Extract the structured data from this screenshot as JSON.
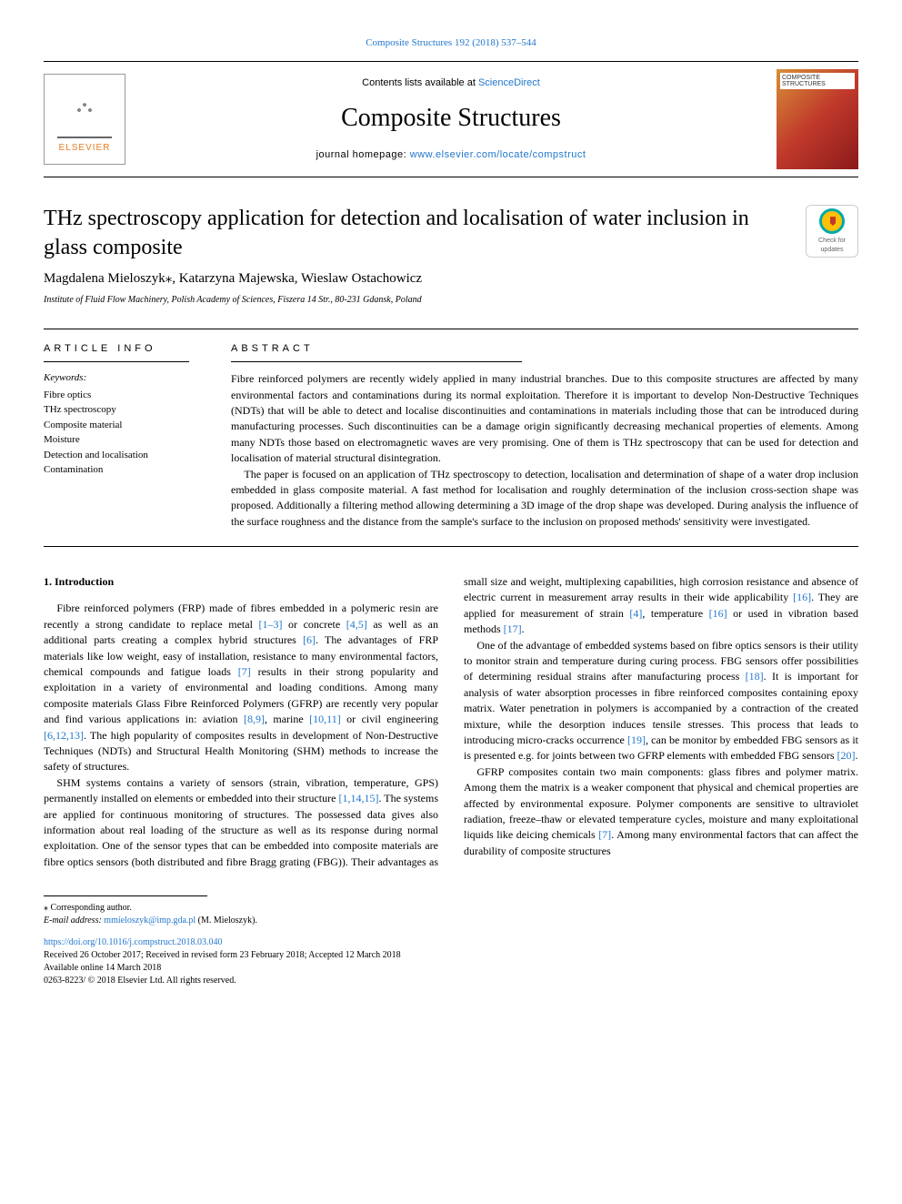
{
  "colors": {
    "link": "#2277cc",
    "text": "#000000",
    "background": "#ffffff",
    "publisher_accent": "#e67e22",
    "cover_gradient": [
      "#d89038",
      "#c0392b",
      "#8b1a1a"
    ],
    "badge_ring": "#00aaaa",
    "badge_fill": "#ffc107",
    "badge_mark": "#c0392b"
  },
  "fonts": {
    "body_family": "Georgia, 'Times New Roman', serif",
    "sans_family": "Arial, sans-serif",
    "title_pt": 24,
    "journal_pt": 28,
    "authors_pt": 15,
    "body_pt": 12,
    "small_pt": 10
  },
  "header": {
    "citation": "Composite Structures 192 (2018) 537–544",
    "contents_prefix": "Contents lists available at ",
    "contents_link": "ScienceDirect",
    "journal": "Composite Structures",
    "homepage_prefix": "journal homepage: ",
    "homepage_url": "www.elsevier.com/locate/compstruct",
    "publisher": "ELSEVIER",
    "cover_label": "COMPOSITE STRUCTURES"
  },
  "badge": {
    "line1": "Check for",
    "line2": "updates"
  },
  "article": {
    "title": "THz spectroscopy application for detection and localisation of water inclusion in glass composite",
    "authors": "Magdalena Mieloszyk⁎, Katarzyna Majewska, Wieslaw Ostachowicz",
    "affiliation": "Institute of Fluid Flow Machinery, Polish Academy of Sciences, Fiszera 14 Str., 80-231 Gdansk, Poland"
  },
  "article_info": {
    "head": "ARTICLE INFO",
    "kw_label": "Keywords:",
    "keywords": [
      "Fibre optics",
      "THz spectroscopy",
      "Composite material",
      "Moisture",
      "Detection and localisation",
      "Contamination"
    ]
  },
  "abstract": {
    "head": "ABSTRACT",
    "p1": "Fibre reinforced polymers are recently widely applied in many industrial branches. Due to this composite structures are affected by many environmental factors and contaminations during its normal exploitation. Therefore it is important to develop Non-Destructive Techniques (NDTs) that will be able to detect and localise discontinuities and contaminations in materials including those that can be introduced during manufacturing processes. Such discontinuities can be a damage origin significantly decreasing mechanical properties of elements. Among many NDTs those based on electromagnetic waves are very promising. One of them is THz spectroscopy that can be used for detection and localisation of material structural disintegration.",
    "p2": "The paper is focused on an application of THz spectroscopy to detection, localisation and determination of shape of a water drop inclusion embedded in glass composite material. A fast method for localisation and roughly determination of the inclusion cross-section shape was proposed. Additionally a filtering method allowing determining a 3D image of the drop shape was developed. During analysis the influence of the surface roughness and the distance from the sample's surface to the inclusion on proposed methods' sensitivity were investigated."
  },
  "section1": {
    "head": "1. Introduction",
    "p1a": "Fibre reinforced polymers (FRP) made of fibres embedded in a polymeric resin are recently a strong candidate to replace metal ",
    "r1": "[1–3]",
    "p1b": " or concrete ",
    "r2": "[4,5]",
    "p1c": " as well as an additional parts creating a complex hybrid structures ",
    "r3": "[6]",
    "p1d": ". The advantages of FRP materials like low weight, easy of installation, resistance to many environmental factors, chemical compounds and fatigue loads ",
    "r4": "[7]",
    "p1e": " results in their strong popularity and exploitation in a variety of environmental and loading conditions. Among many composite materials Glass Fibre Reinforced Polymers (GFRP) are recently very popular and find various applications in: aviation ",
    "r5": "[8,9]",
    "p1f": ", marine ",
    "r6": "[10,11]",
    "p1g": " or civil engineering ",
    "r7": "[6,12,13]",
    "p1h": ". The high popularity of composites results in development of Non-Destructive Techniques (NDTs) and Structural Health Monitoring (SHM) methods to increase the safety of structures.",
    "p2a": "SHM systems contains a variety of sensors (strain, vibration, temperature, GPS) permanently installed on elements or embedded into their structure ",
    "r8": "[1,14,15]",
    "p2b": ". The systems are applied for continuous monitoring of structures. The possessed data gives also information about real loading of the structure as well as its response during normal exploitation. One of the sensor types that can be embedded into composite materials are fibre optics sensors (both distributed and fibre Bragg grating (FBG)). Their advantages as small size and weight, multiplexing capabilities, high corrosion resistance and absence of electric current in measurement array results in their wide applicability ",
    "r9": "[16]",
    "p2c": ". They are applied for measurement of strain ",
    "r10": "[4]",
    "p2d": ", temperature ",
    "r11": "[16]",
    "p2e": " or used in vibration based methods ",
    "r12": "[17]",
    "p2f": ".",
    "p3a": "One of the advantage of embedded systems based on fibre optics sensors is their utility to monitor strain and temperature during curing process. FBG sensors offer possibilities of determining residual strains after manufacturing process ",
    "r13": "[18]",
    "p3b": ". It is important for analysis of water absorption processes in fibre reinforced composites containing epoxy matrix. Water penetration in polymers is accompanied by a contraction of the created mixture, while the desorption induces tensile stresses. This process that leads to introducing micro-cracks occurrence ",
    "r14": "[19]",
    "p3c": ", can be monitor by embedded FBG sensors as it is presented e.g. for joints between two GFRP elements with embedded FBG sensors ",
    "r15": "[20]",
    "p3d": ".",
    "p4a": "GFRP composites contain two main components: glass fibres and polymer matrix. Among them the matrix is a weaker component that physical and chemical properties are affected by environmental exposure. Polymer components are sensitive to ultraviolet radiation, freeze–thaw or elevated temperature cycles, moisture and many exploitational liquids like deicing chemicals ",
    "r16": "[7]",
    "p4b": ". Among many environmental factors that can affect the durability of composite structures"
  },
  "footer": {
    "corr": "⁎ Corresponding author.",
    "email_label": "E-mail address: ",
    "email": "mmieloszyk@imp.gda.pl",
    "email_suffix": " (M. Mieloszyk).",
    "doi": "https://doi.org/10.1016/j.compstruct.2018.03.040",
    "received": "Received 26 October 2017; Received in revised form 23 February 2018; Accepted 12 March 2018",
    "available": "Available online 14 March 2018",
    "copyright": "0263-8223/ © 2018 Elsevier Ltd. All rights reserved."
  }
}
